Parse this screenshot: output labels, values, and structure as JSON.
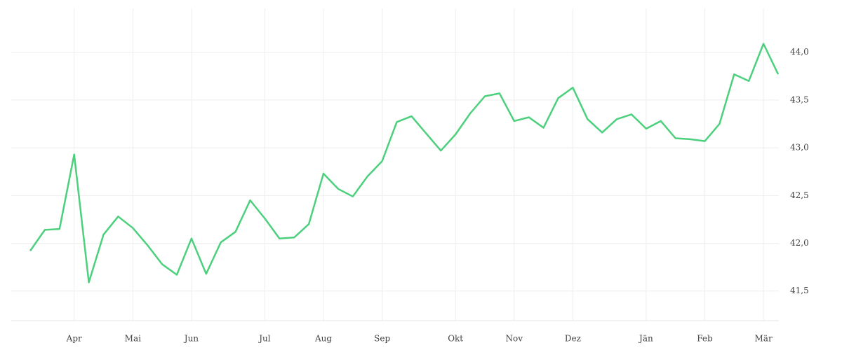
{
  "chart_data": {
    "type": "line",
    "categories": [
      null,
      null,
      null,
      "Apr",
      null,
      null,
      null,
      "Mai",
      null,
      null,
      null,
      "Jun",
      null,
      null,
      null,
      null,
      "Jul",
      null,
      null,
      null,
      "Aug",
      null,
      null,
      null,
      "Sep",
      null,
      null,
      null,
      null,
      "Okt",
      null,
      null,
      null,
      "Nov",
      null,
      null,
      null,
      "Dez",
      null,
      null,
      null,
      null,
      "Jän",
      null,
      null,
      null,
      "Feb",
      null,
      null,
      null,
      "Mär",
      null
    ],
    "series": [
      {
        "color": "#4cd07d",
        "values": [
          41.92,
          42.14,
          42.15,
          42.93,
          41.59,
          42.09,
          42.28,
          42.16,
          41.98,
          41.78,
          41.67,
          42.05,
          41.68,
          42.01,
          42.12,
          42.45,
          42.26,
          42.05,
          42.06,
          42.2,
          42.73,
          42.57,
          42.49,
          42.7,
          42.86,
          43.27,
          43.33,
          43.15,
          42.97,
          43.14,
          43.36,
          43.54,
          43.57,
          43.28,
          43.32,
          43.21,
          43.52,
          43.63,
          43.3,
          43.16,
          43.3,
          43.35,
          43.2,
          43.28,
          43.1,
          43.09,
          43.07,
          43.25,
          43.77,
          43.7,
          44.09,
          43.77
        ]
      }
    ],
    "ylim": [
      41.19,
      44.46
    ],
    "yticks": [
      {
        "value": 41.5,
        "label": "41,5"
      },
      {
        "value": 42.0,
        "label": "42,0"
      },
      {
        "value": 42.5,
        "label": "42,5"
      },
      {
        "value": 43.0,
        "label": "43,0"
      },
      {
        "value": 43.5,
        "label": "43,5"
      },
      {
        "value": 44.0,
        "label": "44,0"
      }
    ],
    "grid": true
  }
}
